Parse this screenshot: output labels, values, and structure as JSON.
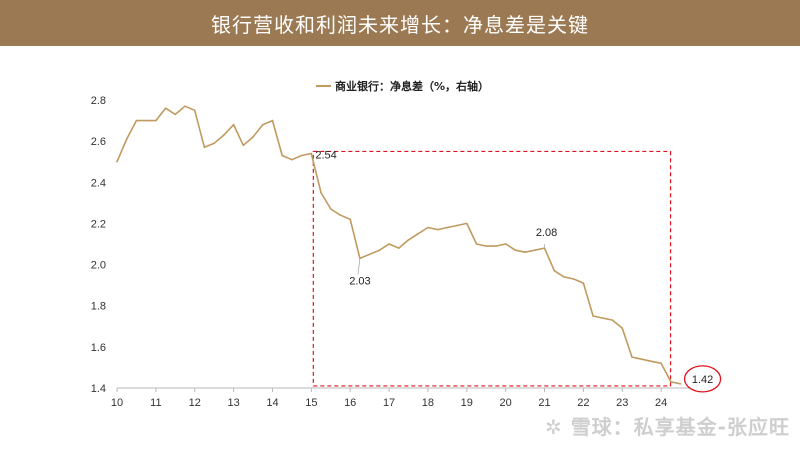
{
  "header": {
    "title": "银行营收和利润未来增长：净息差是关键"
  },
  "colors": {
    "header_bg": "#9b7a53",
    "series_line": "#c09a5f",
    "highlight_box": "#e0141e",
    "endpoint_circle": "#e0141e"
  },
  "watermark": {
    "text": "雪球：私享基金-张应旺",
    "icon": "snowball-logo-icon"
  },
  "chart_data": {
    "type": "line",
    "title": "",
    "xlabel": "",
    "ylabel": "",
    "xlim": [
      10,
      25
    ],
    "ylim": [
      1.4,
      2.8
    ],
    "x_ticks": [
      "10",
      "11",
      "12",
      "13",
      "14",
      "15",
      "16",
      "17",
      "18",
      "19",
      "20",
      "21",
      "22",
      "23",
      "24"
    ],
    "y_ticks": [
      "1.4",
      "1.6",
      "1.8",
      "2.0",
      "2.2",
      "2.4",
      "2.6",
      "2.8"
    ],
    "grid": false,
    "legend": {
      "position": "top-center"
    },
    "series": [
      {
        "name": "商业银行：净息差（%，右轴）",
        "x": [
          10.0,
          10.25,
          10.5,
          10.75,
          11.0,
          11.25,
          11.5,
          11.75,
          12.0,
          12.25,
          12.5,
          12.75,
          13.0,
          13.25,
          13.5,
          13.75,
          14.0,
          14.25,
          14.5,
          14.75,
          15.0,
          15.25,
          15.5,
          15.75,
          16.0,
          16.25,
          16.5,
          16.75,
          17.0,
          17.25,
          17.5,
          17.75,
          18.0,
          18.25,
          18.5,
          18.75,
          19.0,
          19.25,
          19.5,
          19.75,
          20.0,
          20.25,
          20.5,
          20.75,
          21.0,
          21.25,
          21.5,
          21.75,
          22.0,
          22.25,
          22.5,
          22.75,
          23.0,
          23.25,
          23.5,
          23.75,
          24.0,
          24.25,
          24.5
        ],
        "values": [
          2.5,
          2.61,
          2.7,
          2.7,
          2.7,
          2.76,
          2.73,
          2.77,
          2.75,
          2.57,
          2.59,
          2.63,
          2.68,
          2.58,
          2.62,
          2.68,
          2.7,
          2.53,
          2.51,
          2.53,
          2.54,
          2.35,
          2.27,
          2.24,
          2.22,
          2.03,
          2.05,
          2.07,
          2.1,
          2.08,
          2.12,
          2.15,
          2.18,
          2.17,
          2.18,
          2.19,
          2.2,
          2.1,
          2.09,
          2.09,
          2.1,
          2.07,
          2.06,
          2.07,
          2.08,
          1.97,
          1.94,
          1.93,
          1.91,
          1.75,
          1.74,
          1.73,
          1.69,
          1.55,
          1.54,
          1.53,
          1.52,
          1.43,
          1.42
        ]
      }
    ],
    "annotations": [
      {
        "label": "2.54",
        "x": 15.0,
        "y": 2.54
      },
      {
        "label": "2.03",
        "x": 16.25,
        "y": 2.03
      },
      {
        "label": "2.08",
        "x": 21.0,
        "y": 2.08
      },
      {
        "label": "1.42",
        "x": 24.5,
        "y": 1.42,
        "circled": true
      }
    ],
    "highlight_box": {
      "x": [
        15.0,
        24.5
      ],
      "y": [
        1.41,
        2.55
      ],
      "style": "dashed"
    }
  }
}
